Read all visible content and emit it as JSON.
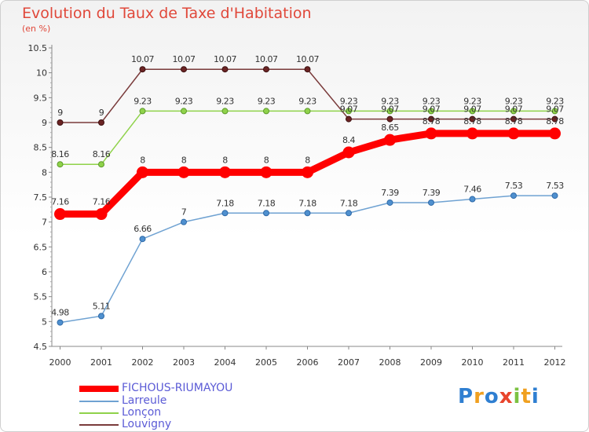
{
  "chart_data": {
    "type": "line",
    "title": "Evolution du Taux de Taxe d'Habitation",
    "subtitle": "(en %)",
    "x": [
      "2000",
      "2001",
      "2002",
      "2003",
      "2004",
      "2005",
      "2006",
      "2007",
      "2008",
      "2009",
      "2010",
      "2011",
      "2012"
    ],
    "ylim": [
      4.5,
      10.5
    ],
    "yticks": [
      "4.5",
      "5",
      "5.5",
      "6",
      "6.5",
      "7",
      "7.5",
      "8",
      "8.5",
      "9",
      "9.5",
      "10",
      "10.5"
    ],
    "grid": false,
    "series": [
      {
        "name": "Louvigny",
        "color": "#7a3b3b",
        "values": [
          9,
          9,
          10.07,
          10.07,
          10.07,
          10.07,
          10.07,
          9.07,
          9.07,
          9.07,
          9.07,
          9.07,
          9.07
        ],
        "labels": [
          "9",
          "9",
          "10.07",
          "10.07",
          "10.07",
          "10.07",
          "10.07",
          "9.07",
          "9.07",
          "9.07",
          "9.07",
          "9.07",
          "9.07"
        ]
      },
      {
        "name": "Lonçon",
        "color": "#8fd24a",
        "values": [
          8.16,
          8.16,
          9.23,
          9.23,
          9.23,
          9.23,
          9.23,
          9.23,
          9.23,
          9.23,
          9.23,
          9.23,
          9.23
        ],
        "labels": [
          "8.16",
          "8.16",
          "9.23",
          "9.23",
          "9.23",
          "9.23",
          "9.23",
          "9.23",
          "9.23",
          "9.23",
          "9.23",
          "9.23",
          "9.23"
        ]
      },
      {
        "name": "Larreule",
        "color": "#6fa2d2",
        "values": [
          4.98,
          5.11,
          6.66,
          7,
          7.18,
          7.18,
          7.18,
          7.18,
          7.39,
          7.39,
          7.46,
          7.53,
          7.53
        ],
        "labels": [
          "4.98",
          "5.11",
          "6.66",
          "7",
          "7.18",
          "7.18",
          "7.18",
          "7.18",
          "7.39",
          "7.39",
          "7.46",
          "7.53",
          "7.53"
        ]
      },
      {
        "name": "FICHOUS-RIUMAYOU",
        "color": "#ff0000",
        "values": [
          7.16,
          7.16,
          8,
          8,
          8,
          8,
          8,
          8.4,
          8.65,
          8.78,
          8.78,
          8.78,
          8.78
        ],
        "labels": [
          "7.16",
          "7.16",
          "8",
          "8",
          "8",
          "8",
          "8",
          "8.4",
          "8.65",
          "8.78",
          "8.78",
          "8.78",
          "8.78"
        ]
      }
    ]
  },
  "legend": [
    {
      "label": "FICHOUS-RIUMAYOU",
      "color": "#ff0000"
    },
    {
      "label": "Larreule",
      "color": "#6fa2d2"
    },
    {
      "label": "Lonçon",
      "color": "#8fd24a"
    },
    {
      "label": "Louvigny",
      "color": "#7a3b3b"
    }
  ],
  "logo": {
    "text": "Proxiti"
  }
}
